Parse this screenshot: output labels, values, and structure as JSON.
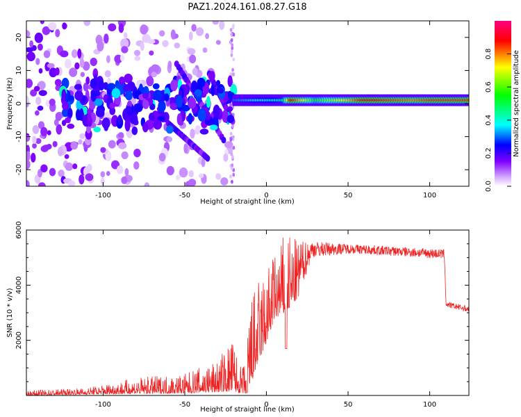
{
  "title": "PAZ1.2024.161.08.27.G18",
  "chart_data": [
    {
      "type": "heatmap",
      "xlabel": "Height of straight line (km)",
      "ylabel": "Frequency (Hz)",
      "xlim": [
        -147,
        124
      ],
      "ylim": [
        -25,
        25
      ],
      "xticks": [
        -100,
        -50,
        0,
        50,
        100
      ],
      "yticks": [
        -20,
        -10,
        0,
        10,
        20
      ],
      "grid": false,
      "colorbar": {
        "label": "Normalized spectral amplitude",
        "range": [
          0,
          1
        ],
        "ticks": [
          0.0,
          0.2,
          0.4,
          0.6,
          0.8
        ],
        "colormap": [
          "#ffffff",
          "#d9b3ff",
          "#8000ff",
          "#0000ff",
          "#00ffff",
          "#00ff00",
          "#ffff00",
          "#ff0000",
          "#ff0080"
        ]
      },
      "ridge": {
        "frequency": 1,
        "x_range": [
          -20,
          124
        ],
        "amplitude_profile": [
          {
            "x": -20,
            "amp": 0.3
          },
          {
            "x": 10,
            "amp": 0.45
          },
          {
            "x": 15,
            "amp": 0.9
          },
          {
            "x": 30,
            "amp": 0.55
          },
          {
            "x": 50,
            "amp": 0.75
          },
          {
            "x": 60,
            "amp": 0.9
          },
          {
            "x": 90,
            "amp": 0.8
          },
          {
            "x": 100,
            "amp": 0.85
          },
          {
            "x": 124,
            "amp": 0.85
          }
        ]
      },
      "diagonal_streaks": [
        {
          "x_start": -35,
          "f_start": 9,
          "x_end": -20,
          "f_end": -6
        },
        {
          "x_start": -55,
          "f_start": 12,
          "x_end": -25,
          "f_end": -12
        },
        {
          "x_start": -60,
          "f_start": -6,
          "x_end": -35,
          "f_end": -17
        }
      ]
    },
    {
      "type": "line",
      "xlabel": "Height of straight line (km)",
      "ylabel": "SNR (10 * v/v)",
      "xlim": [
        -147,
        124
      ],
      "ylim": [
        0,
        6000
      ],
      "xticks": [
        -100,
        -50,
        0,
        50,
        100
      ],
      "yticks": [
        2000,
        4000,
        6000
      ],
      "grid": false,
      "color": "#ee2222",
      "series": [
        {
          "envelope": [
            {
              "x": -147,
              "lo": 0,
              "hi": 180
            },
            {
              "x": -110,
              "lo": 40,
              "hi": 280
            },
            {
              "x": -80,
              "lo": 60,
              "hi": 650
            },
            {
              "x": -50,
              "lo": 80,
              "hi": 800
            },
            {
              "x": -30,
              "lo": 120,
              "hi": 1300
            },
            {
              "x": -20,
              "lo": 150,
              "hi": 2200
            },
            {
              "x": -17,
              "lo": 100,
              "hi": 1000
            },
            {
              "x": -13,
              "lo": 50,
              "hi": 1200
            },
            {
              "x": -11,
              "lo": 150,
              "hi": 3500
            },
            {
              "x": -5,
              "lo": 1200,
              "hi": 4200
            },
            {
              "x": 0,
              "lo": 1900,
              "hi": 4700
            },
            {
              "x": 5,
              "lo": 2800,
              "hi": 5200
            },
            {
              "x": 12,
              "lo": 3000,
              "hi": 6000
            },
            {
              "x": 20,
              "lo": 3600,
              "hi": 5600
            },
            {
              "x": 28,
              "lo": 5000,
              "hi": 5600
            },
            {
              "x": 50,
              "lo": 5150,
              "hi": 5500
            },
            {
              "x": 80,
              "lo": 5050,
              "hi": 5400
            },
            {
              "x": 109,
              "lo": 4950,
              "hi": 5300
            },
            {
              "x": 110,
              "lo": 3200,
              "hi": 3400
            },
            {
              "x": 124,
              "lo": 3000,
              "hi": 3250
            }
          ],
          "dips": [
            {
              "x": 12,
              "y": 1700
            },
            {
              "x": -12,
              "y": 100
            }
          ]
        }
      ]
    }
  ]
}
